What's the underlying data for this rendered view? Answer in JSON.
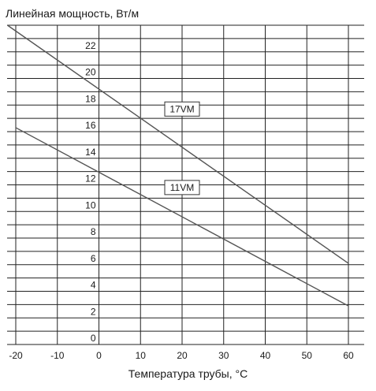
{
  "chart_data": {
    "type": "line",
    "ylabel": "Линейная мощность, Вт/м",
    "xlabel": "Температура трубы, °C",
    "xlim": [
      -20,
      60
    ],
    "ylim": [
      0,
      24
    ],
    "x_ticks": [
      -20,
      -10,
      0,
      10,
      20,
      30,
      40,
      50,
      60
    ],
    "y_ticks": [
      0,
      2,
      4,
      6,
      8,
      10,
      12,
      14,
      16,
      18,
      20,
      22
    ],
    "grid": true,
    "series": [
      {
        "name": "17VM",
        "x": [
          -22,
          60
        ],
        "y": [
          24,
          6.1
        ],
        "label_at": [
          20,
          17.7
        ],
        "color": "#555555"
      },
      {
        "name": "11VM",
        "x": [
          -20,
          60
        ],
        "y": [
          16.3,
          2.9
        ],
        "label_at": [
          20,
          11.8
        ],
        "color": "#555555"
      }
    ]
  }
}
